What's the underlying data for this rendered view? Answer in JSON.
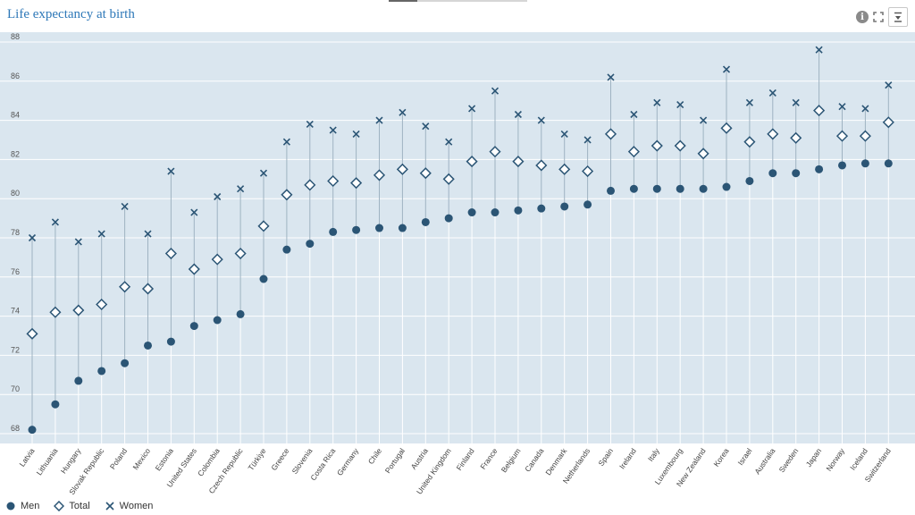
{
  "header": {
    "title": "Life expectancy at birth",
    "info_icon": "info-icon",
    "expand_icon": "expand-icon",
    "download_icon": "download-icon"
  },
  "chart_data": {
    "type": "dot",
    "title": "Life expectancy at birth",
    "xlabel": "",
    "ylabel": "",
    "ylim": [
      67.5,
      88.5
    ],
    "yticks": [
      68,
      70,
      72,
      74,
      76,
      78,
      80,
      82,
      84,
      86,
      88
    ],
    "grid": true,
    "legend_placement": "bottom-left",
    "categories": [
      "Latvia",
      "Lithuania",
      "Hungary",
      "Slovak Republic",
      "Poland",
      "Mexico",
      "Estonia",
      "United States",
      "Colombia",
      "Czech Republic",
      "Türkiye",
      "Greece",
      "Slovenia",
      "Costa Rica",
      "Germany",
      "Chile",
      "Portugal",
      "Austria",
      "United Kingdom",
      "Finland",
      "France",
      "Belgium",
      "Canada",
      "Denmark",
      "Netherlands",
      "Spain",
      "Ireland",
      "Italy",
      "Luxembourg",
      "New Zealand",
      "Korea",
      "Israel",
      "Australia",
      "Sweden",
      "Japan",
      "Norway",
      "Iceland",
      "Switzerland"
    ],
    "series": [
      {
        "name": "Men",
        "marker": "circle",
        "color": "#2b5575",
        "values": [
          68.2,
          69.5,
          70.7,
          71.2,
          71.6,
          72.5,
          72.7,
          73.5,
          73.8,
          74.1,
          75.9,
          77.4,
          77.7,
          78.3,
          78.4,
          78.5,
          78.5,
          78.8,
          79.0,
          79.3,
          79.3,
          79.4,
          79.5,
          79.6,
          79.7,
          80.4,
          80.5,
          80.5,
          80.5,
          80.5,
          80.6,
          80.9,
          81.3,
          81.3,
          81.5,
          81.7,
          81.8,
          81.8
        ]
      },
      {
        "name": "Total",
        "marker": "diamond",
        "color": "#2b5575",
        "values": [
          73.1,
          74.2,
          74.3,
          74.6,
          75.5,
          75.4,
          77.2,
          76.4,
          76.9,
          77.2,
          78.6,
          80.2,
          80.7,
          80.9,
          80.8,
          81.2,
          81.5,
          81.3,
          81.0,
          81.9,
          82.4,
          81.9,
          81.7,
          81.5,
          81.4,
          83.3,
          82.4,
          82.7,
          82.7,
          82.3,
          83.6,
          82.9,
          83.3,
          83.1,
          84.5,
          83.2,
          83.2,
          83.9
        ]
      },
      {
        "name": "Women",
        "marker": "x",
        "color": "#2b5575",
        "values": [
          78.0,
          78.8,
          77.8,
          78.2,
          79.6,
          78.2,
          81.4,
          79.3,
          80.1,
          80.5,
          81.3,
          82.9,
          83.8,
          83.5,
          83.3,
          84.0,
          84.4,
          83.7,
          82.9,
          84.6,
          85.5,
          84.3,
          84.0,
          83.3,
          83.0,
          86.2,
          84.3,
          84.9,
          84.8,
          84.0,
          86.6,
          84.9,
          85.4,
          84.9,
          87.6,
          84.7,
          84.6,
          85.8
        ]
      }
    ]
  }
}
